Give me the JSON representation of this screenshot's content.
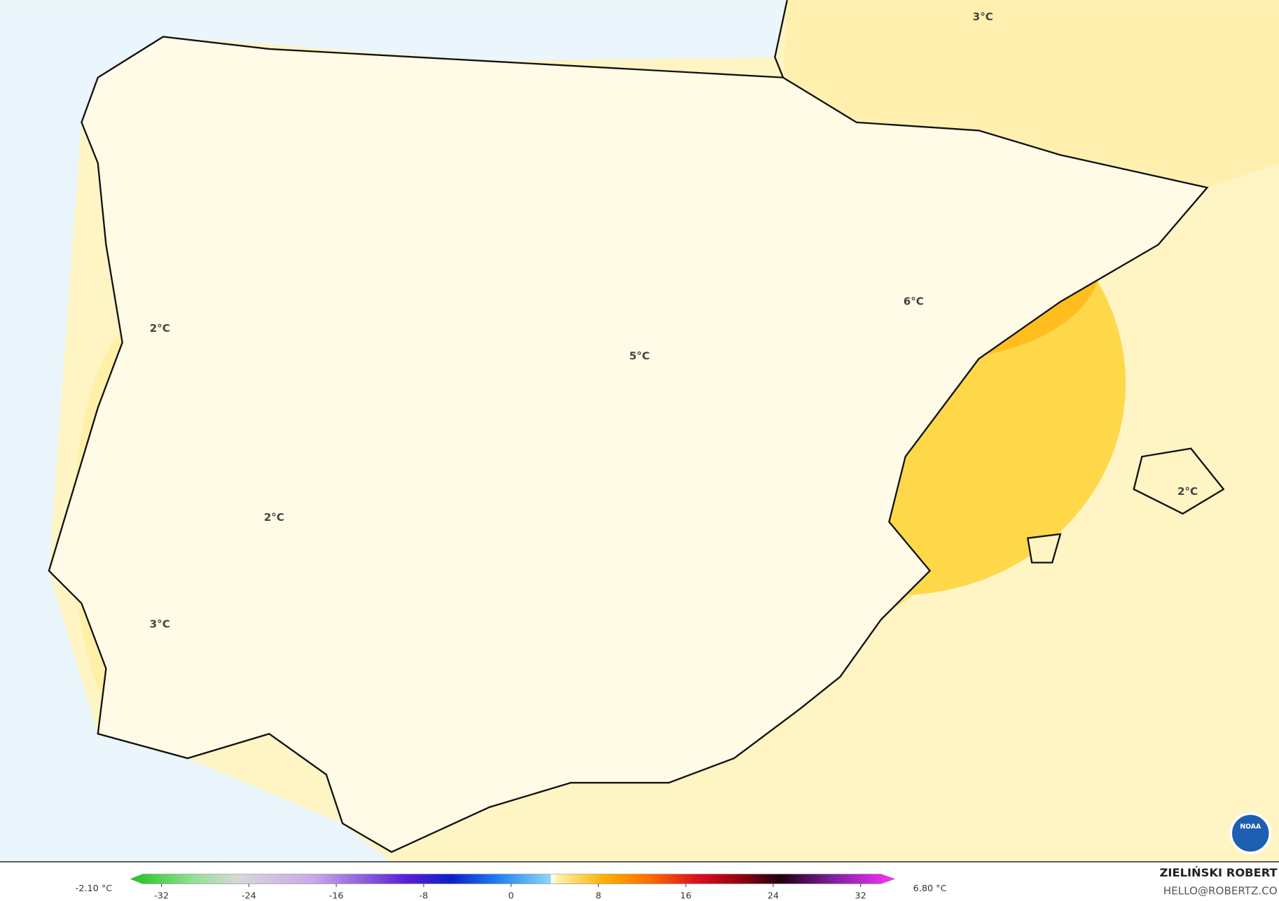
{
  "map": {
    "labels": [
      "3°C",
      "6°C",
      "5°C",
      "2°C",
      "2°C",
      "2°C",
      "3°C"
    ]
  },
  "colorbar": {
    "min_label": "-2.10 °C",
    "max_label": "6.80 °C",
    "ticks": [
      -32,
      -24,
      -16,
      -8,
      0,
      8,
      16,
      24,
      32
    ]
  },
  "credit": {
    "author": "ZIELIŃSKI ROBERT",
    "email": "HELLO@ROBERTZ.CO",
    "logo": "NOAA"
  }
}
